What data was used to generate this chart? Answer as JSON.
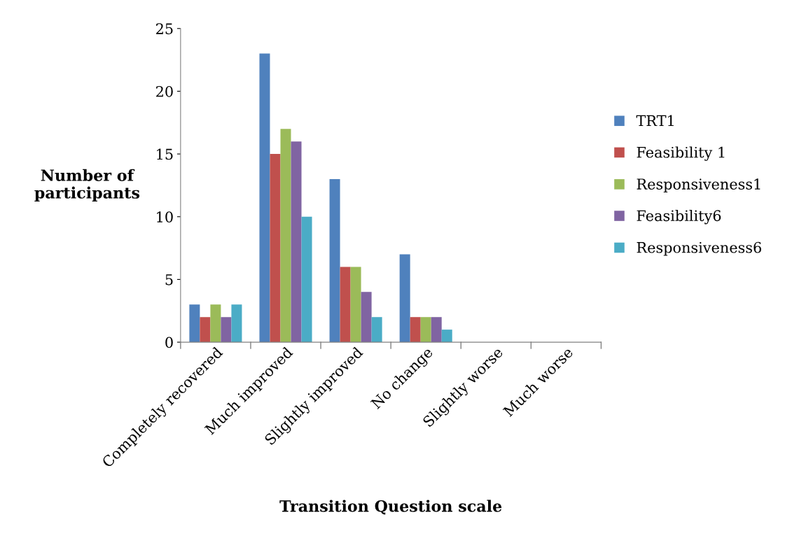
{
  "chart_data": {
    "type": "bar",
    "xlabel": "Transition Question scale",
    "ylabel": "Number of\nparticipants",
    "categories": [
      "Completely recovered",
      "Much improved",
      "Slightly improved",
      "No change",
      "Slightly worse",
      "Much worse"
    ],
    "series": [
      {
        "name": "TRT1",
        "color": "#4f81bd",
        "values": [
          3,
          23,
          13,
          7,
          0,
          0
        ]
      },
      {
        "name": "Feasibility 1",
        "color": "#c0504d",
        "values": [
          2,
          15,
          6,
          2,
          0,
          0
        ]
      },
      {
        "name": "Responsiveness1",
        "color": "#9bbb59",
        "values": [
          3,
          17,
          6,
          2,
          0,
          0
        ]
      },
      {
        "name": "Feasibility6",
        "color": "#8064a2",
        "values": [
          2,
          16,
          4,
          2,
          0,
          0
        ]
      },
      {
        "name": "Responsiveness6",
        "color": "#4bacc6",
        "values": [
          3,
          10,
          2,
          1,
          0,
          0
        ]
      }
    ],
    "ylim": [
      0,
      25
    ],
    "yticks": [
      0,
      5,
      10,
      15,
      20,
      25
    ],
    "grid": false,
    "legend": "right"
  }
}
